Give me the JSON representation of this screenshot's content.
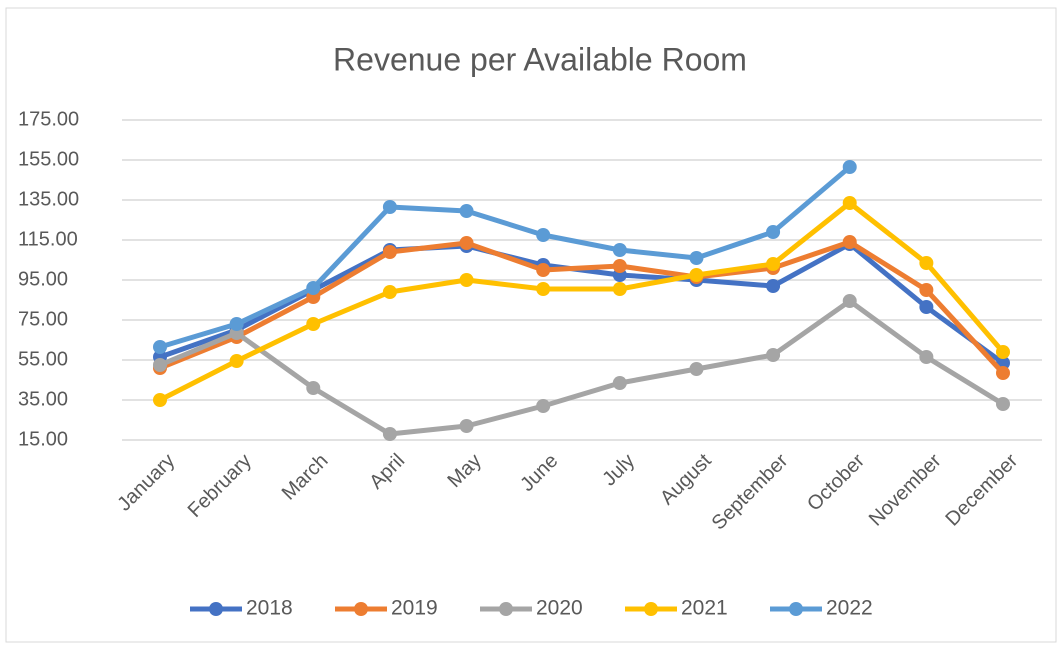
{
  "chart_data": {
    "type": "line",
    "title": "Revenue per Available Room",
    "categories": [
      "January",
      "February",
      "March",
      "April",
      "May",
      "June",
      "July",
      "August",
      "September",
      "October",
      "November",
      "December"
    ],
    "series": [
      {
        "name": "2018",
        "color": "#4472c4",
        "values": [
          56.5,
          70,
          90,
          110,
          112,
          102.5,
          97.5,
          95,
          92,
          113,
          81.5,
          53.5
        ]
      },
      {
        "name": "2019",
        "color": "#ed7d31",
        "values": [
          51,
          66.5,
          86.5,
          109,
          113.5,
          100,
          102,
          96.5,
          101,
          114,
          90,
          48.5
        ]
      },
      {
        "name": "2020",
        "color": "#a5a5a5",
        "values": [
          52.5,
          68.5,
          41,
          18,
          22,
          32,
          43.5,
          50.5,
          57.5,
          84.5,
          56.5,
          33
        ]
      },
      {
        "name": "2021",
        "color": "#ffc000",
        "values": [
          35,
          54.5,
          73,
          89,
          95,
          90.5,
          90.5,
          97.5,
          103,
          133.5,
          103.5,
          59
        ]
      },
      {
        "name": "2022",
        "color": "#5b9bd5",
        "values": [
          61.5,
          73,
          91,
          131.5,
          129.5,
          117.5,
          110,
          106,
          119,
          151.5,
          null,
          null
        ]
      }
    ],
    "ylim": [
      15,
      175
    ],
    "yticks": [
      {
        "value": 15,
        "label": "15.00"
      },
      {
        "value": 35,
        "label": "35.00"
      },
      {
        "value": 55,
        "label": "55.00"
      },
      {
        "value": 75,
        "label": "75.00"
      },
      {
        "value": 95,
        "label": "95.00"
      },
      {
        "value": 115,
        "label": "115.00"
      },
      {
        "value": 135,
        "label": "135.00"
      },
      {
        "value": 155,
        "label": "155.00"
      },
      {
        "value": 175,
        "label": "175.00"
      }
    ],
    "grid": true,
    "legend": "bottom"
  }
}
